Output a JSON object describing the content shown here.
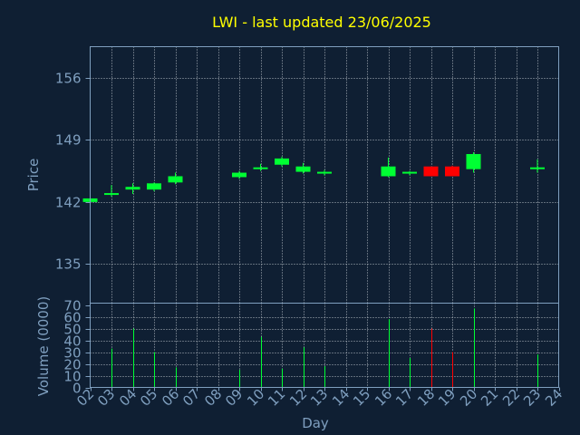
{
  "chart_data": [
    {
      "type": "candlestick",
      "title": "LWI - last updated 23/06/2025",
      "ylabel": "Price",
      "xlabel": "",
      "ylim": [
        130.6,
        159.5
      ],
      "yticks": [
        135,
        142,
        149,
        156
      ],
      "grid": true,
      "colors": {
        "up": "#00ff33",
        "down": "#ff0000"
      },
      "candles": [
        {
          "day": "02",
          "open": 142.0,
          "high": 142.5,
          "low": 141.8,
          "close": 142.4
        },
        {
          "day": "03",
          "open": 142.8,
          "high": 143.9,
          "low": 142.6,
          "close": 143.0
        },
        {
          "day": "04",
          "open": 143.4,
          "high": 144.1,
          "low": 142.9,
          "close": 143.7
        },
        {
          "day": "05",
          "open": 143.4,
          "high": 144.2,
          "low": 143.2,
          "close": 144.1
        },
        {
          "day": "06",
          "open": 144.2,
          "high": 145.3,
          "low": 144.0,
          "close": 144.9
        },
        {
          "day": "09",
          "open": 144.8,
          "high": 145.5,
          "low": 144.6,
          "close": 145.3
        },
        {
          "day": "10",
          "open": 145.7,
          "high": 146.3,
          "low": 145.5,
          "close": 145.9
        },
        {
          "day": "11",
          "open": 146.2,
          "high": 147.1,
          "low": 146.0,
          "close": 146.9
        },
        {
          "day": "12",
          "open": 145.4,
          "high": 146.4,
          "low": 145.2,
          "close": 146.0
        },
        {
          "day": "13",
          "open": 145.2,
          "high": 145.6,
          "low": 145.0,
          "close": 145.4
        },
        {
          "day": "16",
          "open": 144.9,
          "high": 147.0,
          "low": 144.8,
          "close": 146.0
        },
        {
          "day": "17",
          "open": 145.2,
          "high": 145.5,
          "low": 145.0,
          "close": 145.4
        },
        {
          "day": "18",
          "open": 146.0,
          "high": 146.0,
          "low": 144.9,
          "close": 144.9
        },
        {
          "day": "19",
          "open": 146.0,
          "high": 146.1,
          "low": 144.9,
          "close": 144.9
        },
        {
          "day": "20",
          "open": 145.7,
          "high": 147.6,
          "low": 145.3,
          "close": 147.4
        },
        {
          "day": "23",
          "open": 145.7,
          "high": 146.8,
          "low": 145.3,
          "close": 145.9
        }
      ]
    },
    {
      "type": "bar",
      "ylabel": "Volume (0000)",
      "xlabel": "Day",
      "ylim": [
        0,
        70
      ],
      "yticks": [
        0,
        10,
        20,
        30,
        40,
        50,
        60,
        70
      ],
      "grid": true,
      "categories": [
        "02",
        "03",
        "04",
        "05",
        "06",
        "07",
        "08",
        "09",
        "10",
        "11",
        "12",
        "13",
        "14",
        "15",
        "16",
        "17",
        "18",
        "19",
        "20",
        "21",
        "22",
        "23",
        "24"
      ],
      "volumes": [
        {
          "day": "03",
          "value": 33,
          "dir": "up"
        },
        {
          "day": "04",
          "value": 50,
          "dir": "up"
        },
        {
          "day": "05",
          "value": 30,
          "dir": "up"
        },
        {
          "day": "06",
          "value": 17,
          "dir": "up"
        },
        {
          "day": "09",
          "value": 15,
          "dir": "up"
        },
        {
          "day": "10",
          "value": 43,
          "dir": "up"
        },
        {
          "day": "11",
          "value": 16,
          "dir": "up"
        },
        {
          "day": "12",
          "value": 34,
          "dir": "up"
        },
        {
          "day": "13",
          "value": 18,
          "dir": "up"
        },
        {
          "day": "16",
          "value": 58,
          "dir": "up"
        },
        {
          "day": "17",
          "value": 25,
          "dir": "up"
        },
        {
          "day": "18",
          "value": 50,
          "dir": "down"
        },
        {
          "day": "19",
          "value": 30,
          "dir": "down"
        },
        {
          "day": "20",
          "value": 67,
          "dir": "up"
        },
        {
          "day": "23",
          "value": 28,
          "dir": "up"
        }
      ]
    }
  ]
}
